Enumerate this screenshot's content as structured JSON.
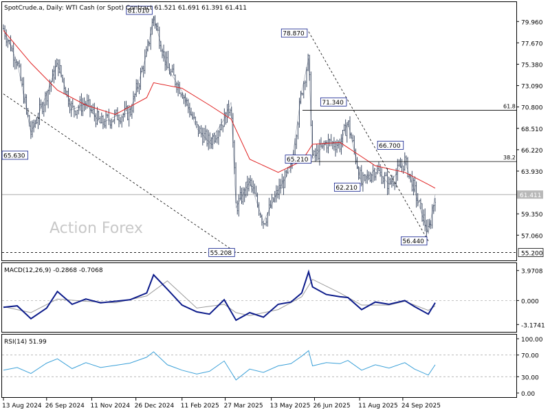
{
  "chart_data": {
    "type": "line",
    "symbol": "SpotCrude.a",
    "timeframe": "Daily",
    "description": "WTI Cash (or Spot) Contract",
    "ohlc_text": "61.521 61.691 61.391 61.411",
    "header": "SpotCrude.a, Daily:  WTI Cash (or Spot) Contract  61.521 61.691 61.391 61.411",
    "watermark": "Action Forex",
    "price_panel": {
      "y_ticks": [
        "79.960",
        "77.670",
        "75.380",
        "73.090",
        "70.800",
        "68.510",
        "66.220",
        "63.930",
        "59.350",
        "57.060"
      ],
      "ylim": [
        54.8,
        81.6
      ],
      "last_price": 61.411,
      "last_price_label": "61.411",
      "bottom_line": 55.2,
      "bottom_line_label": "55.200",
      "fib_levels": [
        {
          "label": "61.8",
          "value": 70.45
        },
        {
          "label": "38.2",
          "value": 64.95
        }
      ],
      "annotations": [
        {
          "label": "81.010",
          "date": "2025-01-13",
          "value": 81.01
        },
        {
          "label": "65.630",
          "date": "2024-09-10",
          "value": 65.63
        },
        {
          "label": "55.208",
          "date": "2025-04-07",
          "value": 55.208
        },
        {
          "label": "78.870",
          "date": "2025-06-20",
          "value": 78.87
        },
        {
          "label": "71.340",
          "date": "2025-07-30",
          "value": 71.34
        },
        {
          "label": "65.210",
          "date": "2025-06-24",
          "value": 65.21
        },
        {
          "label": "62.210",
          "date": "2025-08-13",
          "value": 62.21
        },
        {
          "label": "66.700",
          "date": "2025-09-26",
          "value": 66.7
        },
        {
          "label": "56.440",
          "date": "2025-10-20",
          "value": 56.44
        }
      ],
      "trendlines": [
        {
          "x": [
            "2024-08-13",
            "2025-04-07"
          ],
          "y": [
            72.2,
            55.208
          ]
        },
        {
          "x": [
            "2025-06-20",
            "2025-10-20"
          ],
          "y": [
            78.87,
            56.44
          ]
        }
      ],
      "close_series": {
        "x": [
          "2024-08-13",
          "2024-08-27",
          "2024-09-10",
          "2024-09-26",
          "2024-10-07",
          "2024-10-22",
          "2024-11-05",
          "2024-11-20",
          "2024-12-05",
          "2024-12-20",
          "2025-01-06",
          "2025-01-13",
          "2025-01-27",
          "2025-02-11",
          "2025-02-26",
          "2025-03-11",
          "2025-03-26",
          "2025-04-02",
          "2025-04-07",
          "2025-04-21",
          "2025-05-05",
          "2025-05-20",
          "2025-06-02",
          "2025-06-13",
          "2025-06-20",
          "2025-06-24",
          "2025-07-08",
          "2025-07-22",
          "2025-07-30",
          "2025-08-13",
          "2025-08-27",
          "2025-09-10",
          "2025-09-26",
          "2025-10-06",
          "2025-10-20",
          "2025-10-27"
        ],
        "values": [
          79.2,
          75.6,
          68.0,
          72.2,
          75.5,
          70.5,
          71.2,
          69.0,
          69.8,
          70.2,
          76.5,
          80.5,
          75.0,
          72.5,
          68.5,
          67.0,
          69.5,
          71.3,
          60.0,
          62.8,
          58.5,
          61.8,
          64.2,
          72.5,
          76.0,
          65.2,
          67.0,
          66.8,
          69.2,
          62.5,
          64.2,
          62.5,
          65.0,
          61.8,
          57.2,
          61.4
        ]
      },
      "ma_series": {
        "x": [
          "2024-08-13",
          "2024-09-10",
          "2024-10-07",
          "2024-11-05",
          "2024-12-05",
          "2025-01-06",
          "2025-01-13",
          "2025-02-11",
          "2025-03-11",
          "2025-04-02",
          "2025-04-21",
          "2025-05-20",
          "2025-06-13",
          "2025-06-24",
          "2025-07-22",
          "2025-08-27",
          "2025-09-26",
          "2025-10-20",
          "2025-10-27"
        ],
        "values": [
          79.0,
          75.5,
          72.6,
          71.0,
          70.0,
          71.8,
          73.4,
          72.8,
          71.0,
          69.5,
          65.2,
          63.8,
          65.0,
          66.8,
          67.0,
          64.5,
          63.8,
          62.5,
          62.1
        ]
      }
    },
    "macd_panel": {
      "label": "MACD(12,26,9) -0.2868 -0.7068",
      "y_ticks": [
        "3.9708",
        "0.000",
        "-3.1741"
      ],
      "ylim": [
        -3.6,
        4.4
      ],
      "macd_series": {
        "x": [
          "2024-08-13",
          "2024-08-27",
          "2024-09-10",
          "2024-09-26",
          "2024-10-07",
          "2024-10-22",
          "2024-11-05",
          "2024-11-20",
          "2024-12-05",
          "2024-12-20",
          "2025-01-06",
          "2025-01-13",
          "2025-01-27",
          "2025-02-11",
          "2025-02-26",
          "2025-03-11",
          "2025-03-26",
          "2025-04-07",
          "2025-04-21",
          "2025-05-05",
          "2025-05-20",
          "2025-06-02",
          "2025-06-13",
          "2025-06-20",
          "2025-06-24",
          "2025-07-08",
          "2025-07-22",
          "2025-07-30",
          "2025-08-13",
          "2025-08-27",
          "2025-09-10",
          "2025-09-26",
          "2025-10-06",
          "2025-10-20",
          "2025-10-27"
        ],
        "values": [
          -0.9,
          -0.7,
          -2.4,
          -1.0,
          1.2,
          -0.5,
          0.2,
          -0.3,
          -0.1,
          0.1,
          1.0,
          3.4,
          1.5,
          -0.6,
          -1.5,
          -1.8,
          0.1,
          -2.6,
          -1.6,
          -2.2,
          -0.5,
          -0.2,
          1.0,
          3.8,
          1.8,
          0.8,
          0.5,
          0.4,
          -1.2,
          -0.2,
          -0.5,
          0.0,
          -0.8,
          -1.8,
          -0.29
        ]
      },
      "signal_series": {
        "x": [
          "2024-08-13",
          "2024-09-10",
          "2024-10-07",
          "2024-11-05",
          "2024-12-05",
          "2025-01-06",
          "2025-01-27",
          "2025-02-26",
          "2025-03-26",
          "2025-04-07",
          "2025-04-21",
          "2025-05-20",
          "2025-06-13",
          "2025-06-24",
          "2025-07-22",
          "2025-08-13",
          "2025-09-10",
          "2025-09-26",
          "2025-10-20",
          "2025-10-27"
        ],
        "values": [
          -0.8,
          -1.6,
          0.2,
          -0.1,
          -0.3,
          0.6,
          2.6,
          -1.0,
          -0.5,
          -1.6,
          -2.0,
          -1.2,
          0.5,
          2.8,
          1.0,
          -0.6,
          -0.6,
          -0.1,
          -1.3,
          -0.71
        ]
      }
    },
    "rsi_panel": {
      "label": "RSI(14) 51.99",
      "y_ticks": [
        "100.00",
        "70.00",
        "30.00",
        "0.00"
      ],
      "ylim": [
        0,
        100
      ],
      "levels": [
        70,
        30
      ],
      "rsi_series": {
        "x": [
          "2024-08-13",
          "2024-08-27",
          "2024-09-10",
          "2024-09-26",
          "2024-10-07",
          "2024-10-22",
          "2024-11-05",
          "2024-11-20",
          "2024-12-05",
          "2024-12-20",
          "2025-01-06",
          "2025-01-13",
          "2025-01-27",
          "2025-02-11",
          "2025-02-26",
          "2025-03-11",
          "2025-03-26",
          "2025-04-07",
          "2025-04-21",
          "2025-05-05",
          "2025-05-20",
          "2025-06-02",
          "2025-06-13",
          "2025-06-20",
          "2025-06-24",
          "2025-07-08",
          "2025-07-22",
          "2025-07-30",
          "2025-08-13",
          "2025-08-27",
          "2025-09-10",
          "2025-09-26",
          "2025-10-06",
          "2025-10-20",
          "2025-10-27"
        ],
        "values": [
          42,
          47,
          36,
          55,
          63,
          45,
          56,
          47,
          51,
          55,
          66,
          76,
          52,
          42,
          35,
          40,
          59,
          24,
          44,
          38,
          50,
          54,
          68,
          78,
          50,
          56,
          54,
          60,
          42,
          52,
          46,
          56,
          44,
          33,
          51.99
        ]
      }
    },
    "x_ticks": [
      {
        "label": "13 Aug 2024",
        "date": "2024-08-13"
      },
      {
        "label": "26 Sep 2024",
        "date": "2024-09-26"
      },
      {
        "label": "11 Nov 2024",
        "date": "2024-11-11"
      },
      {
        "label": "26 Dec 2024",
        "date": "2024-12-26"
      },
      {
        "label": "11 Feb 2025",
        "date": "2025-02-11"
      },
      {
        "label": "27 Mar 2025",
        "date": "2025-03-27"
      },
      {
        "label": "13 May 2025",
        "date": "2025-05-13"
      },
      {
        "label": "26 Jun 2025",
        "date": "2025-06-26"
      },
      {
        "label": "11 Aug 2025",
        "date": "2025-08-11"
      },
      {
        "label": "24 Sep 2025",
        "date": "2025-09-24"
      }
    ],
    "colors": {
      "price": "#2b3a55",
      "ma": "#e02020",
      "macd": "#0b1a8a",
      "signal": "#9a9a9a",
      "rsi": "#3aa0d8",
      "text": "#000000",
      "grid": "#b0b0b0"
    }
  }
}
